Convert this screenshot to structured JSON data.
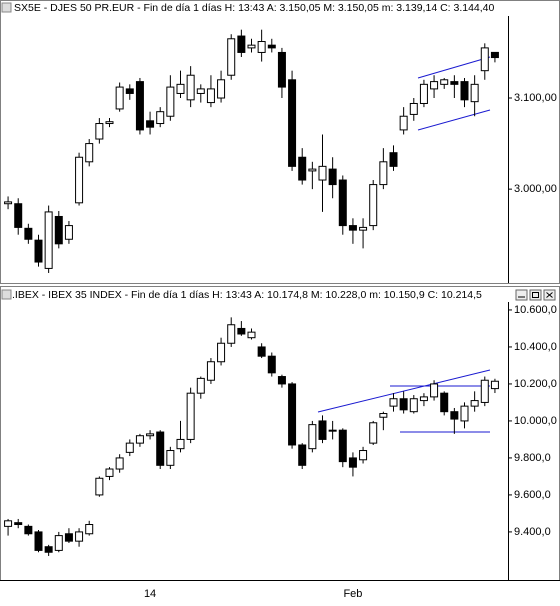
{
  "chart_data": [
    {
      "type": "candlestick",
      "title": "SX5E - DJES 50 PR.EUR - Fin de día 1 días  H: 13:43  A: 3.150,05  M: 3.150,05  m: 3.139,14  C: 3.144,40",
      "ylim": [
        2897,
        3190
      ],
      "yticks": [
        {
          "value": 3100,
          "label": "3.100,00"
        },
        {
          "value": 3000,
          "label": "3.000,00"
        }
      ],
      "open": [
        2984,
        2984,
        2957,
        2944,
        2913,
        2970,
        2945,
        2985,
        3030,
        3055,
        3072,
        3088,
        3110,
        3118,
        3075,
        3072,
        3080,
        3105,
        3098,
        3105,
        3095,
        3100,
        3125,
        3168,
        3155,
        3150,
        3158,
        3150,
        3120,
        3035,
        3020,
        3010,
        3022,
        3010,
        2960,
        2955,
        2960,
        3005,
        3040,
        3065,
        3082,
        3094,
        3110,
        3115,
        3118,
        3118,
        3096,
        3130,
        3150.05
      ],
      "high": [
        2992,
        2990,
        2962,
        2950,
        2982,
        2976,
        2965,
        3040,
        3055,
        3078,
        3078,
        3117,
        3115,
        3122,
        3085,
        3090,
        3125,
        3130,
        3135,
        3115,
        3125,
        3130,
        3170,
        3175,
        3165,
        3175,
        3165,
        3155,
        3130,
        3045,
        3030,
        3060,
        3035,
        3015,
        2968,
        2968,
        3010,
        3045,
        3048,
        3090,
        3100,
        3120,
        3125,
        3122,
        3125,
        3122,
        3125,
        3160,
        3150.05
      ],
      "low": [
        2978,
        2950,
        2940,
        2915,
        2908,
        2935,
        2940,
        2982,
        3025,
        3050,
        3068,
        3085,
        3098,
        3060,
        3060,
        3068,
        3075,
        3100,
        3090,
        3095,
        3090,
        3095,
        3120,
        3145,
        3150,
        3140,
        3150,
        3100,
        3020,
        3005,
        3000,
        2975,
        2990,
        2950,
        2940,
        2935,
        2955,
        3000,
        3020,
        3060,
        3075,
        3090,
        3100,
        3110,
        3100,
        3090,
        3080,
        3120,
        3139.14
      ],
      "close": [
        2986,
        2958,
        2945,
        2920,
        2975,
        2940,
        2960,
        3035,
        3050,
        3072,
        3074,
        3112,
        3105,
        3065,
        3068,
        3085,
        3112,
        3115,
        3125,
        3110,
        3110,
        3120,
        3165,
        3150,
        3158,
        3162,
        3155,
        3112,
        3025,
        3010,
        3022,
        3025,
        3005,
        2960,
        2955,
        2958,
        3005,
        3030,
        3025,
        3080,
        3094,
        3115,
        3118,
        3120,
        3115,
        3098,
        3115,
        3155,
        3144.4
      ]
    },
    {
      "type": "candlestick",
      "title": ".IBEX - IBEX 35 INDEX - Fin de día 1 días  H: 13:43  A: 10.174,8  M: 10.228,0  m: 10.150,9  C: 10.214,5",
      "ylim": [
        9140,
        10643
      ],
      "yticks": [
        {
          "value": 10600,
          "label": "10.600,0"
        },
        {
          "value": 10400,
          "label": "10.400,0"
        },
        {
          "value": 10200,
          "label": "10.200,0"
        },
        {
          "value": 10000,
          "label": "10.000,0"
        },
        {
          "value": 9800,
          "label": "9.800,0"
        },
        {
          "value": 9600,
          "label": "9.600,0"
        },
        {
          "value": 9400,
          "label": "9.400,0"
        }
      ],
      "categories": [
        null,
        null,
        null,
        null,
        null,
        null,
        null,
        null,
        null,
        null,
        null,
        null,
        null,
        null,
        "14",
        null,
        null,
        null,
        null,
        null,
        null,
        null,
        null,
        null,
        null,
        null,
        null,
        null,
        null,
        null,
        null,
        null,
        null,
        null,
        "Feb",
        null,
        null,
        null,
        null,
        null,
        null,
        null,
        null,
        null,
        null,
        null,
        null,
        null,
        null
      ],
      "open": [
        9430,
        9450,
        9430,
        9400,
        9320,
        9300,
        9390,
        9350,
        9390,
        9600,
        9700,
        9740,
        9830,
        9880,
        9920,
        9940,
        9760,
        9850,
        9900,
        10150,
        10220,
        10320,
        10420,
        10500,
        10450,
        10400,
        10350,
        10240,
        10200,
        9870,
        9850,
        10000,
        9950,
        9950,
        9800,
        9790,
        9880,
        10020,
        10080,
        10120,
        10050,
        10110,
        10130,
        10150,
        10050,
        10000,
        10080,
        10100,
        10174.8
      ],
      "high": [
        9470,
        9470,
        9440,
        9410,
        9330,
        9400,
        9420,
        9420,
        9460,
        9700,
        9750,
        9820,
        9900,
        9930,
        9950,
        9950,
        9860,
        10000,
        10180,
        10240,
        10340,
        10450,
        10560,
        10540,
        10500,
        10420,
        10370,
        10250,
        10210,
        9880,
        10000,
        10030,
        10000,
        9960,
        9830,
        9860,
        10000,
        10050,
        10150,
        10160,
        10140,
        10150,
        10220,
        10160,
        10070,
        10100,
        10160,
        10240,
        10228.0
      ],
      "low": [
        9380,
        9420,
        9380,
        9290,
        9270,
        9290,
        9340,
        9320,
        9380,
        9590,
        9680,
        9720,
        9810,
        9860,
        9900,
        9740,
        9740,
        9830,
        9880,
        10120,
        10200,
        10300,
        10400,
        10460,
        10440,
        10340,
        10240,
        10180,
        9850,
        9740,
        9830,
        9880,
        9900,
        9750,
        9700,
        9770,
        9870,
        9950,
        10050,
        10040,
        10040,
        10080,
        10110,
        10030,
        9930,
        9960,
        10050,
        10080,
        10150.9
      ],
      "close": [
        9460,
        9440,
        9390,
        9300,
        9290,
        9380,
        9350,
        9400,
        9440,
        9690,
        9740,
        9800,
        9880,
        9920,
        9930,
        9760,
        9840,
        9900,
        10150,
        10230,
        10320,
        10420,
        10520,
        10470,
        10480,
        10350,
        10260,
        10200,
        9870,
        9760,
        9980,
        9900,
        9950,
        9780,
        9750,
        9840,
        9990,
        10040,
        10120,
        10060,
        10120,
        10130,
        10200,
        10050,
        10010,
        10080,
        10110,
        10220,
        10214.5
      ]
    }
  ]
}
